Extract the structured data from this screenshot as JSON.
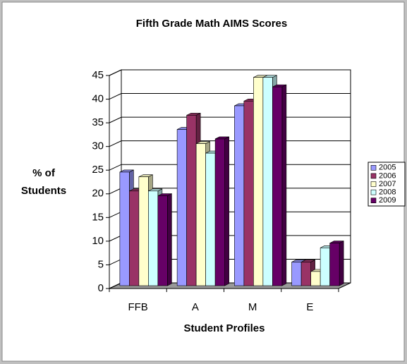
{
  "chart_data": {
    "type": "bar3d",
    "title": "Fifth Grade Math AIMS Scores",
    "ylabel": [
      "% of",
      "Students"
    ],
    "xlabel": "Student Profiles",
    "categories": [
      "FFB",
      "A",
      "M",
      "E"
    ],
    "series": [
      {
        "name": "2005",
        "color": "#9999ff",
        "values": [
          24,
          33,
          38,
          5
        ]
      },
      {
        "name": "2006",
        "color": "#993366",
        "values": [
          20,
          36,
          39,
          5
        ]
      },
      {
        "name": "2007",
        "color": "#ffffcc",
        "values": [
          23,
          30,
          44,
          3
        ]
      },
      {
        "name": "2008",
        "color": "#ccffff",
        "values": [
          20,
          28,
          44,
          8
        ]
      },
      {
        "name": "2009",
        "color": "#660066",
        "values": [
          19,
          31,
          42,
          9
        ]
      }
    ],
    "ylim": [
      0,
      45
    ],
    "yticks": [
      0,
      5,
      10,
      15,
      20,
      25,
      30,
      35,
      40,
      45
    ],
    "grid": true,
    "legend": "right"
  }
}
